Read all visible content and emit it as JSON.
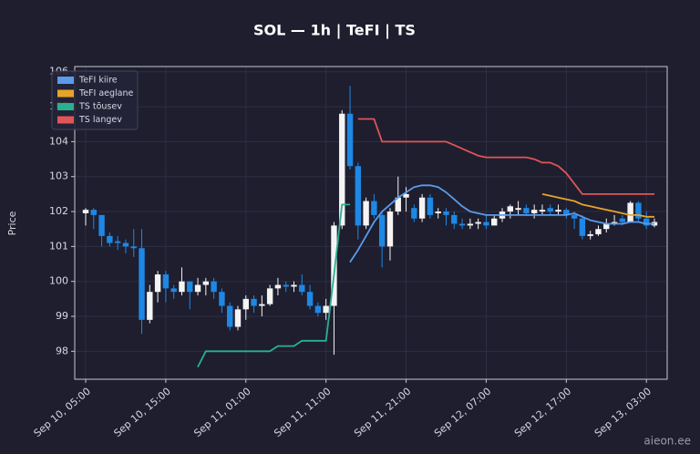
{
  "chart_data": {
    "type": "candlestick",
    "title": "SOL — 1h  |  TeFI  |  TS",
    "ylabel": "Price",
    "watermark": "aieon.ee",
    "categories": [
      "Sep 10, 05:00",
      null,
      null,
      null,
      null,
      null,
      null,
      null,
      null,
      null,
      "Sep 10, 15:00",
      null,
      null,
      null,
      null,
      null,
      null,
      null,
      null,
      null,
      "Sep 11, 01:00",
      null,
      null,
      null,
      null,
      null,
      null,
      null,
      null,
      null,
      "Sep 11, 11:00",
      null,
      null,
      null,
      null,
      null,
      null,
      null,
      null,
      null,
      "Sep 11, 21:00",
      null,
      null,
      null,
      null,
      null,
      null,
      null,
      null,
      null,
      "Sep 12, 07:00",
      null,
      null,
      null,
      null,
      null,
      null,
      null,
      null,
      null,
      "Sep 12, 17:00",
      null,
      null,
      null,
      null,
      null,
      null,
      null,
      null,
      null,
      "Sep 13, 03:00",
      null
    ],
    "open": [
      101.95,
      102.05,
      101.9,
      101.3,
      101.15,
      101.1,
      101.0,
      100.95,
      98.9,
      99.7,
      100.2,
      99.8,
      99.7,
      100.0,
      99.7,
      99.9,
      100.0,
      99.7,
      99.3,
      98.7,
      99.2,
      99.5,
      99.3,
      99.35,
      99.8,
      99.9,
      99.85,
      99.9,
      99.7,
      99.3,
      99.1,
      99.3,
      101.6,
      104.8,
      103.3,
      101.6,
      102.3,
      101.9,
      101.0,
      102.0,
      102.4,
      102.1,
      101.8,
      102.4,
      101.95,
      102.0,
      101.9,
      101.65,
      101.6,
      101.65,
      101.7,
      101.6,
      101.8,
      102.0,
      102.05,
      102.1,
      101.95,
      102.0,
      102.1,
      102.0,
      102.05,
      101.9,
      101.8,
      101.3,
      101.35,
      101.5,
      101.65,
      101.8,
      101.7,
      102.25,
      101.8,
      101.6
    ],
    "high": [
      102.1,
      102.1,
      101.9,
      101.4,
      101.3,
      101.2,
      101.5,
      101.5,
      99.9,
      100.3,
      100.3,
      99.9,
      100.4,
      100.0,
      100.1,
      100.1,
      100.1,
      99.8,
      99.4,
      99.3,
      99.6,
      99.6,
      99.6,
      99.9,
      100.1,
      100.0,
      100.0,
      100.2,
      99.9,
      99.4,
      99.5,
      101.7,
      104.9,
      105.6,
      103.4,
      102.4,
      102.5,
      102.0,
      102.1,
      103.0,
      102.7,
      102.2,
      102.5,
      102.5,
      102.1,
      102.1,
      102.0,
      101.8,
      101.8,
      101.8,
      101.9,
      101.9,
      102.1,
      102.2,
      102.3,
      102.2,
      102.2,
      102.2,
      102.2,
      102.2,
      102.1,
      102.0,
      101.9,
      101.45,
      101.6,
      101.8,
      101.9,
      101.9,
      102.3,
      102.3,
      102.0,
      101.8
    ],
    "low": [
      101.6,
      101.5,
      101.0,
      101.0,
      100.9,
      100.8,
      100.7,
      98.5,
      98.8,
      99.4,
      99.4,
      99.5,
      99.6,
      99.2,
      99.6,
      99.6,
      99.5,
      99.1,
      98.6,
      98.6,
      98.9,
      99.1,
      99.0,
      99.3,
      99.6,
      99.7,
      99.7,
      99.6,
      99.2,
      99.0,
      98.9,
      97.9,
      101.5,
      103.2,
      101.2,
      101.5,
      101.8,
      100.4,
      100.6,
      101.9,
      102.0,
      101.7,
      101.7,
      101.8,
      101.8,
      101.6,
      101.5,
      101.5,
      101.5,
      101.5,
      101.5,
      101.6,
      101.7,
      101.8,
      101.9,
      101.9,
      101.8,
      101.9,
      101.9,
      101.9,
      101.8,
      101.5,
      101.2,
      101.2,
      101.3,
      101.4,
      101.6,
      101.6,
      101.7,
      101.7,
      101.5,
      101.55
    ],
    "close": [
      102.05,
      101.9,
      101.3,
      101.1,
      101.1,
      101.0,
      100.95,
      98.9,
      99.7,
      100.2,
      99.8,
      99.7,
      100.0,
      99.7,
      99.9,
      100.0,
      99.7,
      99.3,
      98.7,
      99.2,
      99.5,
      99.3,
      99.35,
      99.8,
      99.9,
      99.85,
      99.9,
      99.7,
      99.3,
      99.1,
      99.3,
      101.6,
      104.8,
      103.3,
      101.6,
      102.3,
      101.9,
      101.0,
      102.0,
      102.4,
      102.5,
      101.8,
      102.4,
      101.9,
      102.0,
      101.9,
      101.65,
      101.6,
      101.65,
      101.7,
      101.6,
      101.8,
      102.0,
      102.15,
      102.1,
      101.95,
      102.05,
      102.05,
      102.0,
      102.05,
      101.9,
      101.8,
      101.3,
      101.35,
      101.5,
      101.65,
      101.7,
      101.7,
      102.25,
      101.8,
      101.6,
      101.7
    ],
    "up_color": "#f4f4f4",
    "down_color": "#1e88e5",
    "series": [
      {
        "name": "TeFI kiire",
        "color": "#5b9bea",
        "values": [
          null,
          null,
          null,
          null,
          null,
          null,
          null,
          null,
          null,
          null,
          null,
          null,
          null,
          null,
          null,
          null,
          null,
          null,
          null,
          null,
          null,
          null,
          null,
          null,
          null,
          null,
          null,
          null,
          null,
          null,
          null,
          null,
          null,
          100.55,
          100.9,
          101.3,
          101.7,
          102.0,
          102.2,
          102.4,
          102.55,
          102.7,
          102.75,
          102.75,
          102.7,
          102.55,
          102.35,
          102.15,
          102.0,
          101.95,
          101.9,
          101.9,
          101.9,
          101.9,
          101.9,
          101.9,
          101.9,
          101.9,
          101.9,
          101.9,
          101.9,
          101.95,
          101.85,
          101.75,
          101.7,
          101.65,
          101.65,
          101.65,
          101.7,
          101.7,
          101.65,
          101.65
        ]
      },
      {
        "name": "TeFI aeglane",
        "color": "#e6a529",
        "values": [
          null,
          null,
          null,
          null,
          null,
          null,
          null,
          null,
          null,
          null,
          null,
          null,
          null,
          null,
          null,
          null,
          null,
          null,
          null,
          null,
          null,
          null,
          null,
          null,
          null,
          null,
          null,
          null,
          null,
          null,
          null,
          null,
          null,
          null,
          null,
          null,
          null,
          null,
          null,
          null,
          null,
          null,
          null,
          null,
          null,
          null,
          null,
          null,
          null,
          null,
          null,
          null,
          null,
          null,
          null,
          null,
          null,
          102.5,
          102.45,
          102.4,
          102.35,
          102.3,
          102.2,
          102.15,
          102.1,
          102.05,
          102.0,
          101.95,
          101.9,
          101.9,
          101.85,
          101.85
        ]
      },
      {
        "name": "TS tõusev",
        "color": "#2bb08e",
        "values": [
          null,
          null,
          null,
          null,
          null,
          null,
          null,
          null,
          null,
          null,
          null,
          null,
          null,
          null,
          97.55,
          98.0,
          98.0,
          98.0,
          98.0,
          98.0,
          98.0,
          98.0,
          98.0,
          98.0,
          98.15,
          98.15,
          98.15,
          98.3,
          98.3,
          98.3,
          98.3,
          100.2,
          102.2,
          102.2,
          null,
          null,
          null,
          null,
          null,
          null,
          null,
          null,
          null,
          null,
          null,
          null,
          null,
          null,
          null,
          null,
          null,
          null,
          null,
          null,
          null,
          null,
          null,
          null,
          null,
          null,
          null,
          null,
          null,
          null,
          null,
          null,
          null,
          null,
          null,
          null,
          null,
          null
        ]
      },
      {
        "name": "TS langev",
        "color": "#e05555",
        "values": [
          null,
          null,
          null,
          null,
          null,
          null,
          null,
          null,
          null,
          null,
          null,
          null,
          null,
          null,
          null,
          null,
          null,
          null,
          null,
          null,
          null,
          null,
          null,
          null,
          null,
          null,
          null,
          null,
          null,
          null,
          null,
          null,
          null,
          null,
          104.65,
          104.65,
          104.65,
          104.0,
          104.0,
          104.0,
          104.0,
          104.0,
          104.0,
          104.0,
          104.0,
          104.0,
          103.9,
          103.8,
          103.7,
          103.6,
          103.55,
          103.55,
          103.55,
          103.55,
          103.55,
          103.55,
          103.5,
          103.4,
          103.4,
          103.3,
          103.1,
          102.8,
          102.5,
          102.5,
          102.5,
          102.5,
          102.5,
          102.5,
          102.5,
          102.5,
          102.5,
          102.5
        ]
      }
    ],
    "ylim": [
      97.2,
      106.15
    ],
    "yticks": [
      98,
      99,
      100,
      101,
      102,
      103,
      104,
      105,
      106
    ],
    "grid": true,
    "legend": "upper left"
  }
}
